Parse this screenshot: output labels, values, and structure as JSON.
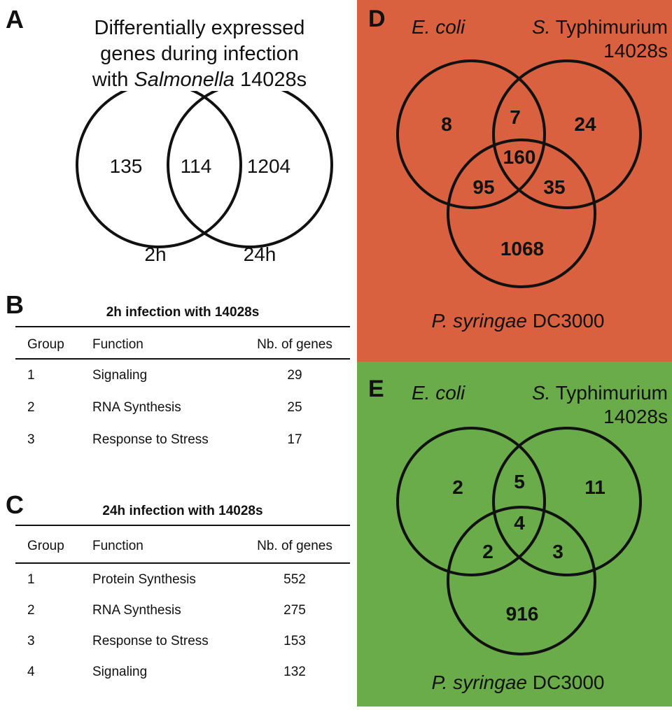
{
  "panel_a": {
    "letter": "A",
    "title_lines": [
      "Differentially expressed",
      "genes during infection"
    ],
    "title_line3_italic": "Salmonella",
    "title_line3_prefix": "with ",
    "title_line3_suffix": " 14028s",
    "left_only": "135",
    "overlap": "114",
    "right_only": "1204",
    "left_label": "2h",
    "right_label": "24h"
  },
  "panel_b": {
    "letter": "B",
    "caption": "2h infection with 14028s",
    "headers": [
      "Group",
      "Function",
      "Nb. of genes"
    ],
    "rows": [
      [
        "1",
        "Signaling",
        "29"
      ],
      [
        "2",
        "RNA Synthesis",
        "25"
      ],
      [
        "3",
        "Response to Stress",
        "17"
      ]
    ]
  },
  "panel_c": {
    "letter": "C",
    "caption": "24h infection with 14028s",
    "headers": [
      "Group",
      "Function",
      "Nb. of genes"
    ],
    "rows": [
      [
        "1",
        "Protein Synthesis",
        "552"
      ],
      [
        "2",
        "RNA Synthesis",
        "275"
      ],
      [
        "3",
        "Response to Stress",
        "153"
      ],
      [
        "4",
        "Signaling",
        "132"
      ]
    ]
  },
  "panel_d": {
    "letter": "D",
    "background": "#d9613f",
    "label_ecoli": "E. coli",
    "label_st_italic": "S.",
    "label_st_rest": " Typhimurium",
    "label_st_line2": "14028s",
    "label_ps_italic": "P. syringae",
    "label_ps_rest": " DC3000",
    "ecoli_only": "8",
    "ecoli_st": "7",
    "st_only": "24",
    "all_three": "160",
    "ecoli_ps": "95",
    "st_ps": "35",
    "ps_only": "1068"
  },
  "panel_e": {
    "letter": "E",
    "background": "#6aab4a",
    "label_ecoli": "E. coli",
    "label_st_italic": "S.",
    "label_st_rest": " Typhimurium",
    "label_st_line2": "14028s",
    "label_ps_italic": "P. syringae",
    "label_ps_rest": " DC3000",
    "ecoli_only": "2",
    "ecoli_st": "5",
    "st_only": "11",
    "all_three": "4",
    "ecoli_ps": "2",
    "st_ps": "3",
    "ps_only": "916"
  }
}
